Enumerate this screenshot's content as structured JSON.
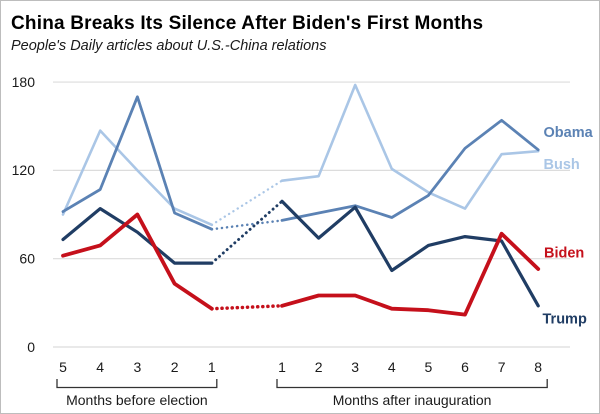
{
  "chart_data": {
    "type": "line",
    "title": "China Breaks Its Silence After Biden's First Months",
    "subtitle": "People's Daily articles about U.S.-China relations",
    "ylabel": "",
    "xlabel": "",
    "y_ticks": [
      0,
      60,
      120,
      180
    ],
    "ylim": [
      0,
      195
    ],
    "grid": "horizontal",
    "x_groups": [
      {
        "label": "Months before election",
        "ticks": [
          "5",
          "4",
          "3",
          "2",
          "1"
        ]
      },
      {
        "label": "Months after inauguration",
        "ticks": [
          "1",
          "2",
          "3",
          "4",
          "5",
          "6",
          "7",
          "8"
        ]
      }
    ],
    "gap_style": "dotted connector between last pre-election month and first post-inauguration month",
    "series": [
      {
        "name": "Bush",
        "color": "#aac6e6",
        "before_election": [
          90,
          147,
          120,
          94,
          83
        ],
        "after_inauguration": [
          113,
          116,
          178,
          121,
          105,
          94,
          131,
          133
        ]
      },
      {
        "name": "Obama",
        "color": "#5b82b4",
        "before_election": [
          92,
          107,
          170,
          91,
          80
        ],
        "after_inauguration": [
          86,
          91,
          96,
          88,
          103,
          135,
          154,
          134
        ]
      },
      {
        "name": "Trump",
        "color": "#203d64",
        "before_election": [
          73,
          94,
          78,
          57,
          57
        ],
        "after_inauguration": [
          99,
          74,
          95,
          52,
          69,
          75,
          72,
          28
        ]
      },
      {
        "name": "Biden",
        "color": "#c5101b",
        "before_election": [
          62,
          69,
          90,
          43,
          26
        ],
        "after_inauguration": [
          28,
          35,
          35,
          26,
          25,
          22,
          77,
          53
        ]
      }
    ]
  }
}
